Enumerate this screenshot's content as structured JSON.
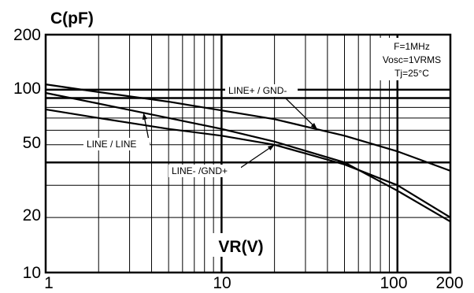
{
  "chart_data": {
    "type": "line",
    "title": "",
    "ylabel": "C(pF)",
    "xlabel": "VR(V)",
    "x_scale": "log",
    "y_scale": "log",
    "xlim": [
      1,
      200
    ],
    "ylim": [
      10,
      200
    ],
    "x_ticks": [
      "1",
      "10",
      "100",
      "200"
    ],
    "y_ticks": [
      "10",
      "20",
      "50",
      "100",
      "200"
    ],
    "grid": true,
    "conditions": [
      "F=1MHz",
      "Vosc=1VRMS",
      "Tj=25°C"
    ],
    "annotations": [
      {
        "text": "LINE+ / GND-",
        "series": 0
      },
      {
        "text": "LINE / LINE",
        "series": 1
      },
      {
        "text": "LINE-  /GND+",
        "series": 2
      }
    ],
    "series": [
      {
        "name": "LINE+ / GND-",
        "x": [
          1,
          2,
          5,
          10,
          20,
          50,
          100,
          200
        ],
        "y": [
          107,
          97,
          86,
          77,
          69,
          56,
          46,
          36
        ]
      },
      {
        "name": "LINE / LINE",
        "x": [
          1,
          2,
          5,
          10,
          20,
          50,
          100,
          200
        ],
        "y": [
          96,
          84,
          70,
          61,
          52,
          40,
          28,
          19
        ]
      },
      {
        "name": "LINE-  /GND+",
        "x": [
          1,
          2,
          5,
          10,
          20,
          50,
          100,
          200
        ],
        "y": [
          78,
          70,
          61,
          56,
          50,
          39,
          30,
          20
        ]
      }
    ],
    "colors": {
      "line": "#000000",
      "grid": "#000000",
      "background": "#ffffff"
    }
  }
}
